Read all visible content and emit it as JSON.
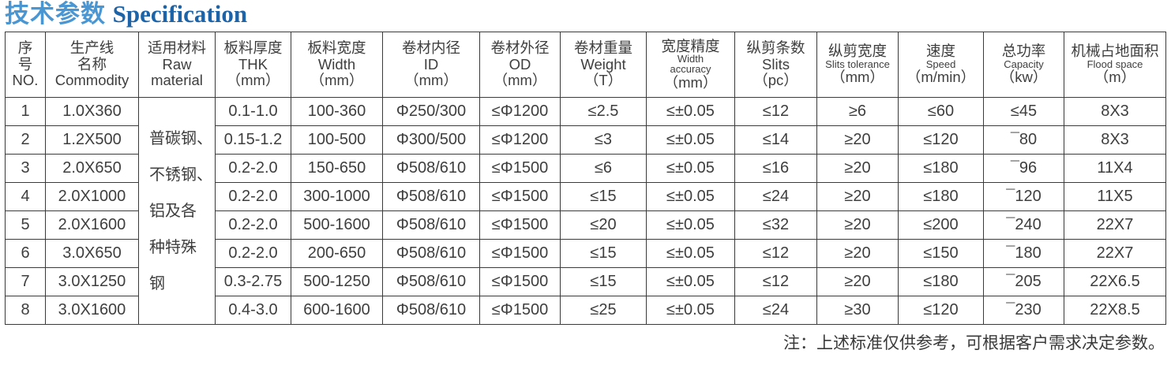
{
  "title": {
    "zh": "技术参数",
    "en": "Specification"
  },
  "colors": {
    "title_zh": "#4a96d2",
    "title_en": "#1c63a8",
    "border": "#3a3a3a",
    "text": "#3e3e3e"
  },
  "table": {
    "headers": [
      {
        "lines": [
          "序",
          "号",
          "NO."
        ],
        "small": []
      },
      {
        "lines": [
          "生产线",
          "名称",
          "Commodity"
        ],
        "small": []
      },
      {
        "lines": [
          "适用材料",
          "Raw",
          "material"
        ],
        "small": []
      },
      {
        "lines": [
          "板料厚度",
          "THK",
          "（mm）"
        ],
        "small": []
      },
      {
        "lines": [
          "板料宽度",
          "Width",
          "（mm）"
        ],
        "small": []
      },
      {
        "lines": [
          "卷材内径",
          "ID",
          "（mm）"
        ],
        "small": []
      },
      {
        "lines": [
          "卷材外径",
          "OD",
          "（mm）"
        ],
        "small": []
      },
      {
        "lines": [
          "卷材重量",
          "Weight",
          "（T）"
        ],
        "small": []
      },
      {
        "lines": [
          "宽度精度",
          "Width",
          "accuracy",
          "（mm）"
        ],
        "small": [
          1,
          2
        ]
      },
      {
        "lines": [
          "纵剪条数",
          "Slits",
          "（pc）"
        ],
        "small": []
      },
      {
        "lines": [
          "纵剪宽度",
          "Slits tolerance",
          "（mm）"
        ],
        "small": [
          1
        ]
      },
      {
        "lines": [
          "速度",
          "Speed",
          "（m/min）"
        ],
        "small": [
          1
        ]
      },
      {
        "lines": [
          "总功率",
          "Capacity",
          "（kw）"
        ],
        "small": [
          1
        ]
      },
      {
        "lines": [
          "机械占地面积",
          "Flood space",
          "（m）"
        ],
        "small": [
          1
        ]
      }
    ],
    "raw_material": "普碳钢、\n不锈钢、\n铝及各\n种特殊\n钢",
    "rows": [
      [
        "1",
        "1.0X360",
        "0.1-1.0",
        "100-360",
        "Φ250/300",
        "≤Φ1200",
        "≤2.5",
        "≤±0.05",
        "≤12",
        "≥6",
        "≤60",
        "≤45",
        "8X3"
      ],
      [
        "2",
        "1.2X500",
        "0.15-1.2",
        "100-500",
        "Φ300/500",
        "≤Φ1200",
        "≤3",
        "≤±0.05",
        "≤14",
        "≥20",
        "≤120",
        "¯80",
        "8X3"
      ],
      [
        "3",
        "2.0X650",
        "0.2-2.0",
        "150-650",
        "Φ508/610",
        "≤Φ1500",
        "≤6",
        "≤±0.05",
        "≤16",
        "≥20",
        "≤180",
        "¯96",
        "11X4"
      ],
      [
        "4",
        "2.0X1000",
        "0.2-2.0",
        "300-1000",
        "Φ508/610",
        "≤Φ1500",
        "≤15",
        "≤±0.05",
        "≤24",
        "≥20",
        "≤180",
        "¯120",
        "11X5"
      ],
      [
        "5",
        "2.0X1600",
        "0.2-2.0",
        "500-1600",
        "Φ508/610",
        "≤Φ1500",
        "≤20",
        "≤±0.05",
        "≤32",
        "≥20",
        "≤200",
        "¯240",
        "22X7"
      ],
      [
        "6",
        "3.0X650",
        "0.2-2.0",
        "200-650",
        "Φ508/610",
        "≤Φ1500",
        "≤15",
        "≤±0.05",
        "≤12",
        "≥20",
        "≤150",
        "¯180",
        "22X7"
      ],
      [
        "7",
        "3.0X1250",
        "0.3-2.75",
        "500-1250",
        "Φ508/610",
        "≤Φ1500",
        "≤15",
        "≤±0.05",
        "≤12",
        "≥20",
        "≤180",
        "¯205",
        "22X6.5"
      ],
      [
        "8",
        "3.0X1600",
        "0.4-3.0",
        "600-1600",
        "Φ508/610",
        "≤Φ1500",
        "≤25",
        "≤±0.05",
        "≤24",
        "≥30",
        "≤120",
        "¯230",
        "22X8.5"
      ]
    ]
  },
  "note": "注：上述标准仅供参考，可根据客户需求决定参数。"
}
